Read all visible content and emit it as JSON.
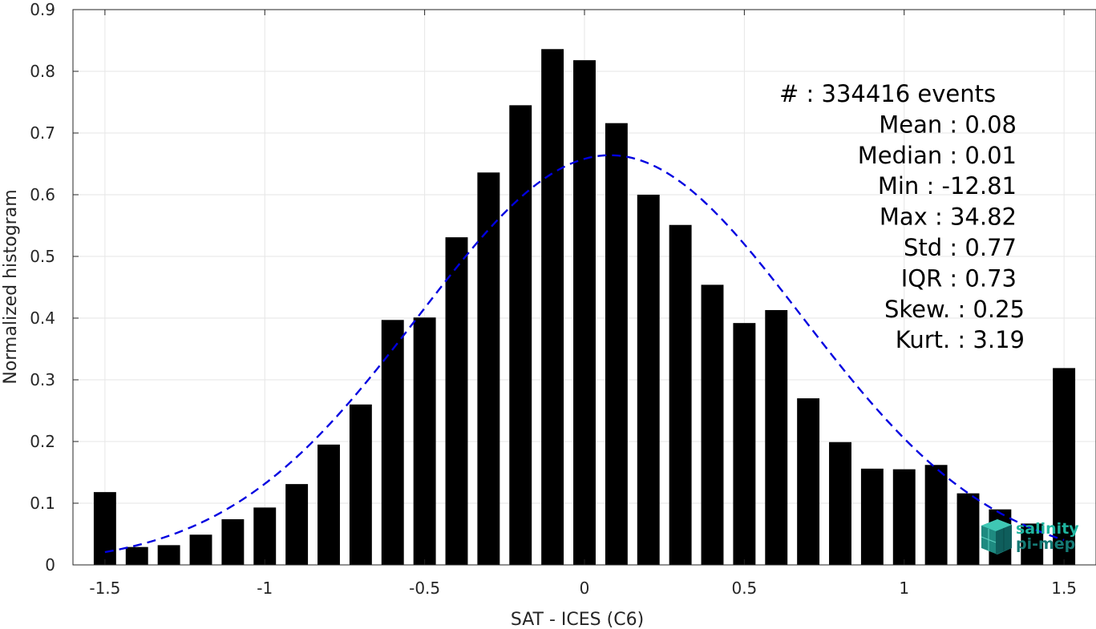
{
  "chart_data": {
    "type": "bar",
    "xlabel": "SAT - ICES (C6)",
    "ylabel": "Normalized histogram",
    "xlim": [
      -1.6,
      1.6
    ],
    "ylim": [
      0,
      0.9
    ],
    "grid": true,
    "x_ticks": [
      -1.5,
      -1,
      -0.5,
      0,
      0.5,
      1,
      1.5
    ],
    "x_tick_labels": [
      "-1.5",
      "-1",
      "-0.5",
      "0",
      "0.5",
      "1",
      "1.5"
    ],
    "y_ticks": [
      0,
      0.1,
      0.2,
      0.3,
      0.4,
      0.5,
      0.6,
      0.7,
      0.8,
      0.9
    ],
    "y_tick_labels": [
      "0",
      "0.1",
      "0.2",
      "0.3",
      "0.4",
      "0.5",
      "0.6",
      "0.7",
      "0.8",
      "0.9"
    ],
    "bar_width": 0.07,
    "bar_color": "#000000",
    "bars": {
      "x": [
        -1.5,
        -1.4,
        -1.3,
        -1.2,
        -1.1,
        -1.0,
        -0.9,
        -0.8,
        -0.7,
        -0.6,
        -0.5,
        -0.4,
        -0.3,
        -0.2,
        -0.1,
        0.0,
        0.1,
        0.2,
        0.3,
        0.4,
        0.5,
        0.6,
        0.7,
        0.8,
        0.9,
        1.0,
        1.1,
        1.2,
        1.3,
        1.4,
        1.5
      ],
      "values": [
        0.118,
        0.029,
        0.032,
        0.049,
        0.074,
        0.093,
        0.131,
        0.195,
        0.26,
        0.397,
        0.401,
        0.531,
        0.636,
        0.745,
        0.836,
        0.818,
        0.716,
        0.6,
        0.551,
        0.454,
        0.392,
        0.413,
        0.27,
        0.199,
        0.156,
        0.155,
        0.162,
        0.116,
        0.09,
        0.067,
        0.319
      ]
    },
    "fit_curve": {
      "style": "dashed",
      "color": "#0000e0",
      "mean": 0.08,
      "std": 0.6,
      "peak": 0.664,
      "x_range": [
        -1.5,
        1.5
      ]
    },
    "stats": [
      {
        "label": "#  : 334416 events"
      },
      {
        "label": "Mean : 0.08"
      },
      {
        "label": "Median : 0.01"
      },
      {
        "label": "Min : -12.81"
      },
      {
        "label": "Max : 34.82"
      },
      {
        "label": "Std : 0.77"
      },
      {
        "label": "IQR : 0.73"
      },
      {
        "label": "Skew. : 0.25"
      },
      {
        "label": "Kurt. : 3.19"
      }
    ],
    "logo": {
      "line1": "salinity",
      "line2": "pi-mep",
      "color1": "#1fb5a0",
      "color2": "#157a75"
    }
  }
}
